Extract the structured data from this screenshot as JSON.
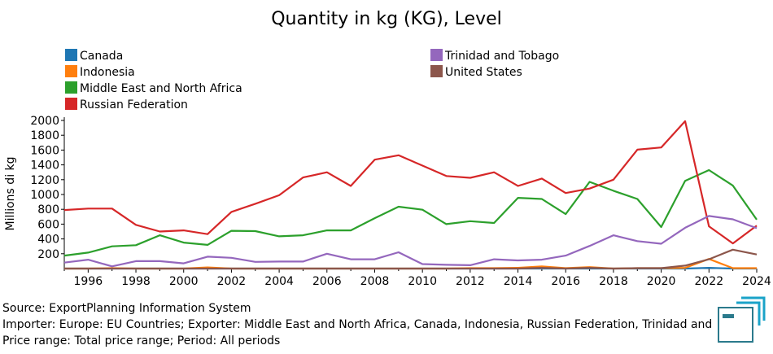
{
  "chart_data": {
    "type": "line",
    "title": "Quantity in kg (KG), Level",
    "ylabel": "Millions di kg",
    "xlabel": "",
    "xlim": [
      1995,
      2024
    ],
    "ylim": [
      0,
      2000
    ],
    "grid": false,
    "legend_placement": "top",
    "x_ticks": [
      1996,
      1998,
      2000,
      2002,
      2004,
      2006,
      2008,
      2010,
      2012,
      2014,
      2016,
      2018,
      2020,
      2022,
      2024
    ],
    "y_ticks": [
      200,
      400,
      600,
      800,
      1000,
      1200,
      1400,
      1600,
      1800,
      2000
    ],
    "x": [
      1995,
      1996,
      1997,
      1998,
      1999,
      2000,
      2001,
      2002,
      2003,
      2004,
      2005,
      2006,
      2007,
      2008,
      2009,
      2010,
      2011,
      2012,
      2013,
      2014,
      2015,
      2016,
      2017,
      2018,
      2019,
      2020,
      2021,
      2022,
      2023,
      2024
    ],
    "series": [
      {
        "name": "Canada",
        "color": "#1f77b4",
        "values": [
          0,
          0,
          0,
          0,
          0,
          0,
          0,
          0,
          0,
          0,
          0,
          0,
          0,
          0,
          0,
          0,
          0,
          0,
          0,
          0,
          0,
          0,
          0,
          0,
          0,
          0,
          0,
          10,
          0,
          0
        ]
      },
      {
        "name": "Indonesia",
        "color": "#ff7f0e",
        "values": [
          0,
          0,
          5,
          0,
          0,
          0,
          15,
          0,
          0,
          0,
          0,
          0,
          0,
          0,
          0,
          0,
          0,
          5,
          5,
          10,
          30,
          5,
          20,
          0,
          5,
          5,
          10,
          130,
          5,
          5
        ]
      },
      {
        "name": "Middle East and North Africa",
        "color": "#2ca02c",
        "values": [
          175,
          215,
          300,
          315,
          450,
          350,
          320,
          510,
          505,
          435,
          450,
          515,
          515,
          680,
          835,
          795,
          600,
          640,
          615,
          955,
          940,
          735,
          1170,
          1050,
          940,
          560,
          1185,
          1330,
          1120,
          660
        ]
      },
      {
        "name": "Russian Federation",
        "color": "#d62728",
        "values": [
          790,
          810,
          810,
          590,
          500,
          515,
          465,
          765,
          875,
          990,
          1230,
          1300,
          1115,
          1470,
          1530,
          1390,
          1250,
          1225,
          1300,
          1115,
          1215,
          1020,
          1080,
          1200,
          1605,
          1635,
          1990,
          570,
          340,
          580
        ]
      },
      {
        "name": "Trinidad and Tobago",
        "color": "#9467bd",
        "values": [
          80,
          120,
          30,
          100,
          100,
          70,
          160,
          145,
          90,
          95,
          95,
          200,
          125,
          125,
          220,
          60,
          50,
          45,
          125,
          110,
          120,
          175,
          305,
          450,
          370,
          335,
          550,
          710,
          665,
          545
        ]
      },
      {
        "name": "United States",
        "color": "#8c564b",
        "values": [
          0,
          0,
          0,
          0,
          0,
          0,
          0,
          0,
          0,
          0,
          0,
          0,
          0,
          0,
          0,
          0,
          0,
          0,
          0,
          0,
          10,
          0,
          10,
          0,
          5,
          5,
          40,
          125,
          255,
          190
        ]
      }
    ]
  },
  "footer": {
    "source": "Source: ExportPlanning Information System",
    "importer": "Importer: Europe: EU Countries; Exporter: Middle East and North Africa, Canada, Indonesia, Russian Federation, Trinidad and",
    "price_range": "Price range: Total price range; Period: All periods"
  },
  "logo": {
    "name": "exportplanning-logo-icon",
    "colors": [
      "#2b7a8c",
      "#1aa3c8"
    ]
  }
}
